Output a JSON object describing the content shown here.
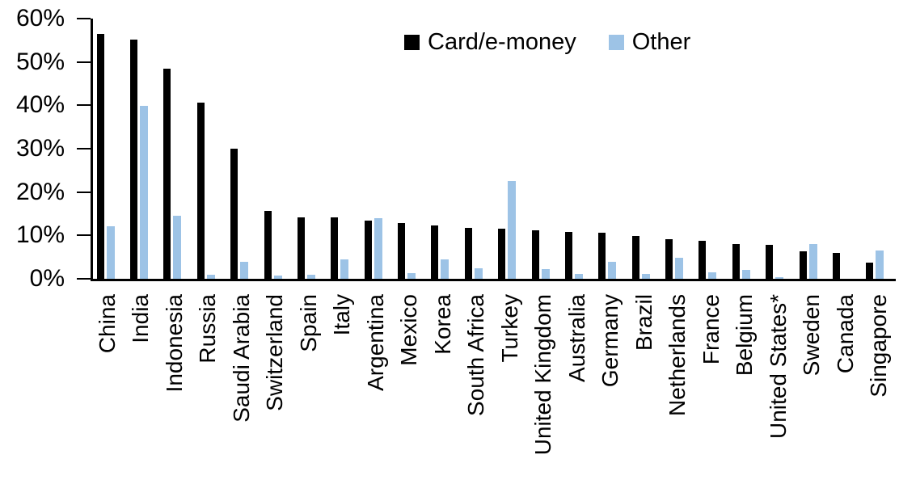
{
  "chart_data": {
    "type": "bar",
    "title": "",
    "xlabel": "",
    "ylabel": "",
    "ylim": [
      0,
      60
    ],
    "yticks": [
      "0%",
      "10%",
      "20%",
      "30%",
      "40%",
      "50%",
      "60%"
    ],
    "grid": false,
    "legend_position": "top-center",
    "categories": [
      "China",
      "India",
      "Indonesia",
      "Russia",
      "Saudi Arabia",
      "Switzerland",
      "Spain",
      "Italy",
      "Argentina",
      "Mexico",
      "Korea",
      "South Africa",
      "Turkey",
      "United Kingdom",
      "Australia",
      "Germany",
      "Brazil",
      "Netherlands",
      "France",
      "Belgium",
      "United States*",
      "Sweden",
      "Canada",
      "Singapore"
    ],
    "series": [
      {
        "name": "Card/e-money",
        "color": "#000000",
        "values": [
          56.5,
          55.2,
          48.5,
          40.6,
          30.0,
          15.6,
          14.2,
          14.1,
          13.4,
          12.9,
          12.3,
          11.7,
          11.6,
          11.1,
          10.8,
          10.6,
          9.9,
          9.2,
          8.7,
          8.1,
          7.8,
          6.4,
          5.9,
          3.7
        ]
      },
      {
        "name": "Other",
        "color": "#9DC3E6",
        "values": [
          12.2,
          39.9,
          14.5,
          1.0,
          3.9,
          0.8,
          1.0,
          4.5,
          13.9,
          1.3,
          4.5,
          2.4,
          22.6,
          2.3,
          1.1,
          4.0,
          1.1,
          4.9,
          1.5,
          2.0,
          0.3,
          8.1,
          0.0,
          6.6
        ]
      }
    ]
  }
}
